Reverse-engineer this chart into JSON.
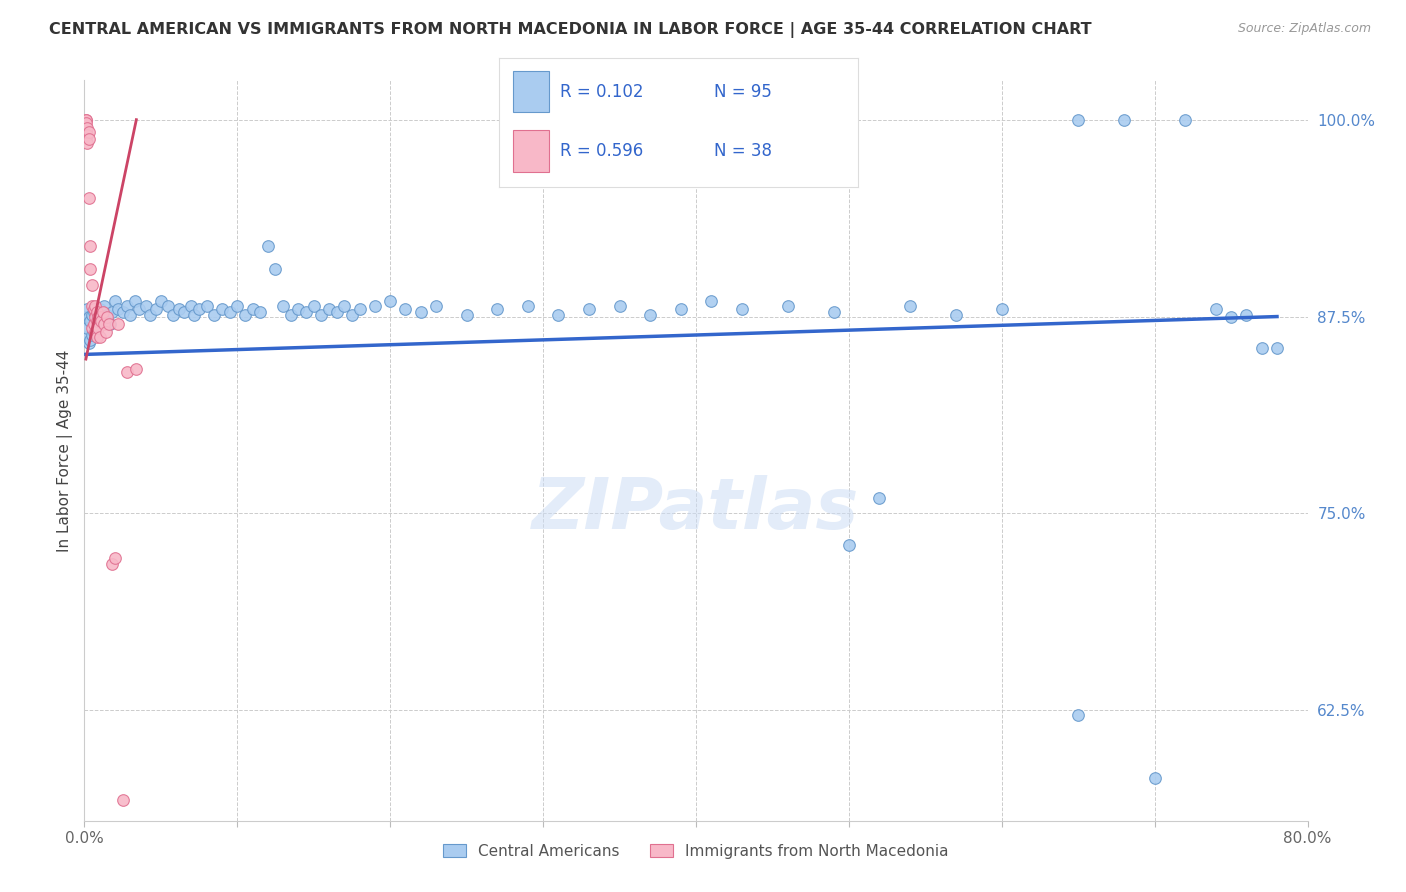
{
  "title": "CENTRAL AMERICAN VS IMMIGRANTS FROM NORTH MACEDONIA IN LABOR FORCE | AGE 35-44 CORRELATION CHART",
  "source": "Source: ZipAtlas.com",
  "ylabel": "In Labor Force | Age 35-44",
  "xlim": [
    0.0,
    0.8
  ],
  "ylim": [
    0.555,
    1.025
  ],
  "xticks": [
    0.0,
    0.1,
    0.2,
    0.3,
    0.4,
    0.5,
    0.6,
    0.7,
    0.8
  ],
  "xticklabels": [
    "0.0%",
    "",
    "",
    "",
    "",
    "",
    "",
    "",
    "80.0%"
  ],
  "ytick_positions": [
    0.625,
    0.75,
    0.875,
    1.0
  ],
  "ytick_labels": [
    "62.5%",
    "75.0%",
    "87.5%",
    "100.0%"
  ],
  "legend_blue_r": "R = 0.102",
  "legend_blue_n": "N = 95",
  "legend_pink_r": "R = 0.596",
  "legend_pink_n": "N = 38",
  "legend_blue_label": "Central Americans",
  "legend_pink_label": "Immigrants from North Macedonia",
  "blue_scatter_color": "#aaccf0",
  "blue_edge_color": "#6699cc",
  "pink_scatter_color": "#f8b8c8",
  "pink_edge_color": "#e07090",
  "blue_line_color": "#3366cc",
  "pink_line_color": "#cc4466",
  "text_color_r": "#3366cc",
  "text_color_n": "#3366cc",
  "watermark": "ZIPatlas",
  "blue_x": [
    0.001,
    0.001,
    0.002,
    0.002,
    0.003,
    0.003,
    0.004,
    0.004,
    0.005,
    0.005,
    0.006,
    0.006,
    0.007,
    0.007,
    0.008,
    0.009,
    0.01,
    0.01,
    0.011,
    0.012,
    0.013,
    0.015,
    0.017,
    0.018,
    0.02,
    0.022,
    0.025,
    0.028,
    0.03,
    0.033,
    0.036,
    0.04,
    0.043,
    0.047,
    0.05,
    0.055,
    0.058,
    0.062,
    0.065,
    0.07,
    0.072,
    0.075,
    0.08,
    0.085,
    0.09,
    0.095,
    0.1,
    0.105,
    0.11,
    0.115,
    0.12,
    0.125,
    0.13,
    0.135,
    0.14,
    0.145,
    0.15,
    0.155,
    0.16,
    0.165,
    0.17,
    0.175,
    0.18,
    0.19,
    0.2,
    0.21,
    0.22,
    0.23,
    0.25,
    0.27,
    0.29,
    0.31,
    0.33,
    0.35,
    0.37,
    0.39,
    0.41,
    0.43,
    0.46,
    0.49,
    0.52,
    0.5,
    0.54,
    0.57,
    0.6,
    0.65,
    0.7,
    0.74,
    0.76,
    0.77,
    0.65,
    0.68,
    0.72,
    0.75,
    0.78
  ],
  "blue_y": [
    0.875,
    0.862,
    0.88,
    0.868,
    0.875,
    0.858,
    0.872,
    0.86,
    0.876,
    0.863,
    0.878,
    0.865,
    0.88,
    0.87,
    0.875,
    0.868,
    0.88,
    0.87,
    0.875,
    0.878,
    0.882,
    0.876,
    0.87,
    0.878,
    0.885,
    0.88,
    0.878,
    0.882,
    0.876,
    0.885,
    0.88,
    0.882,
    0.876,
    0.88,
    0.885,
    0.882,
    0.876,
    0.88,
    0.878,
    0.882,
    0.876,
    0.88,
    0.882,
    0.876,
    0.88,
    0.878,
    0.882,
    0.876,
    0.88,
    0.878,
    0.92,
    0.905,
    0.882,
    0.876,
    0.88,
    0.878,
    0.882,
    0.876,
    0.88,
    0.878,
    0.882,
    0.876,
    0.88,
    0.882,
    0.885,
    0.88,
    0.878,
    0.882,
    0.876,
    0.88,
    0.882,
    0.876,
    0.88,
    0.882,
    0.876,
    0.88,
    0.885,
    0.88,
    0.882,
    0.878,
    0.76,
    0.73,
    0.882,
    0.876,
    0.88,
    0.622,
    0.582,
    0.88,
    0.876,
    0.855,
    1.0,
    1.0,
    1.0,
    0.875,
    0.855
  ],
  "pink_x": [
    0.001,
    0.001,
    0.001,
    0.002,
    0.002,
    0.002,
    0.003,
    0.003,
    0.003,
    0.004,
    0.004,
    0.005,
    0.005,
    0.005,
    0.006,
    0.006,
    0.007,
    0.007,
    0.007,
    0.008,
    0.008,
    0.008,
    0.009,
    0.009,
    0.01,
    0.01,
    0.011,
    0.012,
    0.013,
    0.014,
    0.015,
    0.016,
    0.018,
    0.02,
    0.022,
    0.025,
    0.028,
    0.034
  ],
  "pink_y": [
    1.0,
    1.0,
    0.998,
    0.995,
    0.99,
    0.985,
    0.992,
    0.988,
    0.95,
    0.92,
    0.905,
    0.895,
    0.882,
    0.868,
    0.88,
    0.87,
    0.882,
    0.875,
    0.865,
    0.878,
    0.872,
    0.862,
    0.875,
    0.868,
    0.875,
    0.862,
    0.872,
    0.878,
    0.87,
    0.865,
    0.875,
    0.87,
    0.718,
    0.722,
    0.87,
    0.568,
    0.84,
    0.842
  ],
  "blue_trend_x": [
    0.001,
    0.78
  ],
  "blue_trend_y": [
    0.851,
    0.875
  ],
  "pink_trend_x": [
    0.001,
    0.034
  ],
  "pink_trend_y": [
    0.848,
    1.0
  ]
}
